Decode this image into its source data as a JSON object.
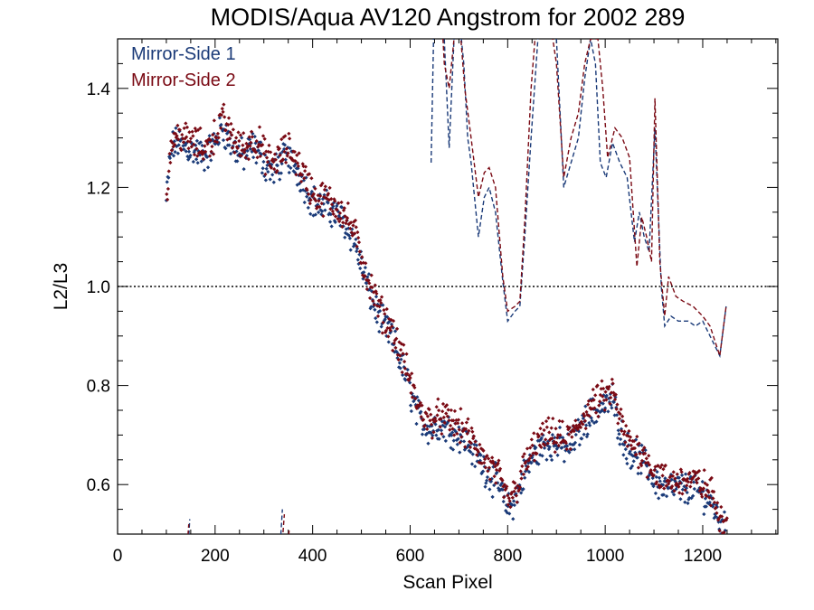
{
  "chart_data": {
    "type": "scatter",
    "title": "MODIS/Aqua AV120 Angstrom for 2002 289",
    "xlabel": "Scan Pixel",
    "ylabel": "L2/L3",
    "xlim": [
      0,
      1354
    ],
    "ylim": [
      0.5,
      1.5
    ],
    "x_ticks": [
      0,
      200,
      400,
      600,
      800,
      1000,
      1200
    ],
    "y_ticks": [
      0.6,
      0.8,
      1.0,
      1.2,
      1.4
    ],
    "x_tick_labels": [
      "0",
      "200",
      "400",
      "600",
      "800",
      "1000",
      "1200"
    ],
    "y_tick_labels": [
      "0.6",
      "0.8",
      "1.0",
      "1.2",
      "1.4"
    ],
    "reference_line": 1.0,
    "legend_position": "top-left",
    "colors": {
      "ms1": "#1a3a78",
      "ms2": "#7a0a14"
    },
    "legend": [
      {
        "label": "Mirror-Side 1",
        "color": "#1a3a78"
      },
      {
        "label": "Mirror-Side 2",
        "color": "#7a0a14"
      }
    ],
    "profile": [
      [
        100,
        1.18
      ],
      [
        106,
        1.25
      ],
      [
        112,
        1.29
      ],
      [
        125,
        1.3
      ],
      [
        140,
        1.29
      ],
      [
        160,
        1.28
      ],
      [
        180,
        1.27
      ],
      [
        200,
        1.3
      ],
      [
        215,
        1.33
      ],
      [
        230,
        1.3
      ],
      [
        245,
        1.28
      ],
      [
        260,
        1.27
      ],
      [
        275,
        1.29
      ],
      [
        290,
        1.28
      ],
      [
        305,
        1.25
      ],
      [
        320,
        1.24
      ],
      [
        335,
        1.26
      ],
      [
        350,
        1.27
      ],
      [
        365,
        1.25
      ],
      [
        380,
        1.22
      ],
      [
        395,
        1.19
      ],
      [
        410,
        1.17
      ],
      [
        425,
        1.17
      ],
      [
        440,
        1.16
      ],
      [
        455,
        1.15
      ],
      [
        470,
        1.13
      ],
      [
        485,
        1.1
      ],
      [
        500,
        1.05
      ],
      [
        515,
        1.0
      ],
      [
        530,
        0.96
      ],
      [
        545,
        0.93
      ],
      [
        560,
        0.91
      ],
      [
        575,
        0.87
      ],
      [
        590,
        0.83
      ],
      [
        605,
        0.78
      ],
      [
        620,
        0.74
      ],
      [
        640,
        0.72
      ],
      [
        660,
        0.73
      ],
      [
        680,
        0.72
      ],
      [
        700,
        0.71
      ],
      [
        720,
        0.69
      ],
      [
        740,
        0.66
      ],
      [
        760,
        0.63
      ],
      [
        780,
        0.61
      ],
      [
        795,
        0.57
      ],
      [
        805,
        0.56
      ],
      [
        820,
        0.59
      ],
      [
        835,
        0.63
      ],
      [
        850,
        0.66
      ],
      [
        865,
        0.68
      ],
      [
        880,
        0.69
      ],
      [
        900,
        0.69
      ],
      [
        920,
        0.68
      ],
      [
        940,
        0.7
      ],
      [
        955,
        0.73
      ],
      [
        970,
        0.75
      ],
      [
        985,
        0.76
      ],
      [
        1000,
        0.77
      ],
      [
        1015,
        0.78
      ],
      [
        1030,
        0.72
      ],
      [
        1045,
        0.68
      ],
      [
        1060,
        0.67
      ],
      [
        1080,
        0.65
      ],
      [
        1100,
        0.62
      ],
      [
        1120,
        0.6
      ],
      [
        1140,
        0.6
      ],
      [
        1160,
        0.6
      ],
      [
        1180,
        0.6
      ],
      [
        1200,
        0.59
      ],
      [
        1220,
        0.57
      ],
      [
        1235,
        0.53
      ],
      [
        1250,
        0.51
      ]
    ],
    "series": [
      {
        "name": "Mirror-Side 1",
        "color": "#1a3a78",
        "offset": -0.008,
        "dashed_line": [
          [
            643,
            1.25
          ],
          [
            648,
            1.5
          ],
          [
            652,
            1.6
          ],
          [
            663,
            1.55
          ],
          [
            670,
            1.5
          ],
          [
            680,
            1.28
          ],
          [
            690,
            1.5
          ],
          [
            700,
            1.55
          ],
          [
            710,
            1.45
          ],
          [
            718,
            1.3
          ],
          [
            725,
            1.25
          ],
          [
            740,
            1.1
          ],
          [
            752,
            1.18
          ],
          [
            762,
            1.2
          ],
          [
            775,
            1.15
          ],
          [
            790,
            1.01
          ],
          [
            800,
            0.93
          ],
          [
            815,
            0.95
          ],
          [
            825,
            0.96
          ],
          [
            835,
            1.1
          ],
          [
            848,
            1.3
          ],
          [
            862,
            1.5
          ],
          [
            885,
            1.6
          ],
          [
            900,
            1.5
          ],
          [
            915,
            1.2
          ],
          [
            930,
            1.25
          ],
          [
            945,
            1.3
          ],
          [
            958,
            1.42
          ],
          [
            970,
            1.5
          ],
          [
            980,
            1.45
          ],
          [
            990,
            1.25
          ],
          [
            1002,
            1.22
          ],
          [
            1015,
            1.29
          ],
          [
            1030,
            1.25
          ],
          [
            1045,
            1.22
          ],
          [
            1060,
            1.09
          ],
          [
            1070,
            1.15
          ],
          [
            1080,
            1.1
          ],
          [
            1090,
            1.07
          ],
          [
            1102,
            1.32
          ],
          [
            1115,
            1.0
          ],
          [
            1122,
            0.92
          ],
          [
            1135,
            0.94
          ],
          [
            1150,
            0.93
          ],
          [
            1170,
            0.93
          ],
          [
            1185,
            0.92
          ],
          [
            1200,
            0.93
          ],
          [
            1215,
            0.9
          ],
          [
            1235,
            0.86
          ],
          [
            1248,
            0.96
          ]
        ],
        "low_fragments": [
          [
            [
              143,
              0.44
            ],
            [
              148,
              0.53
            ]
          ],
          [
            [
              333,
              0.47
            ],
            [
              338,
              0.55
            ]
          ]
        ]
      },
      {
        "name": "Mirror-Side 2",
        "color": "#7a0a14",
        "offset": 0.008,
        "dashed_line": [
          [
            643,
            1.55
          ],
          [
            652,
            1.6
          ],
          [
            662,
            1.6
          ],
          [
            670,
            1.45
          ],
          [
            680,
            1.4
          ],
          [
            690,
            1.5
          ],
          [
            700,
            1.55
          ],
          [
            712,
            1.4
          ],
          [
            725,
            1.3
          ],
          [
            740,
            1.18
          ],
          [
            752,
            1.23
          ],
          [
            762,
            1.24
          ],
          [
            775,
            1.2
          ],
          [
            790,
            1.02
          ],
          [
            800,
            0.95
          ],
          [
            815,
            0.96
          ],
          [
            825,
            0.97
          ],
          [
            835,
            1.13
          ],
          [
            848,
            1.4
          ],
          [
            860,
            1.55
          ],
          [
            885,
            1.55
          ],
          [
            900,
            1.45
          ],
          [
            915,
            1.22
          ],
          [
            930,
            1.3
          ],
          [
            945,
            1.35
          ],
          [
            958,
            1.45
          ],
          [
            970,
            1.5
          ],
          [
            985,
            1.5
          ],
          [
            995,
            1.4
          ],
          [
            1005,
            1.26
          ],
          [
            1020,
            1.32
          ],
          [
            1035,
            1.3
          ],
          [
            1050,
            1.26
          ],
          [
            1065,
            1.04
          ],
          [
            1075,
            1.14
          ],
          [
            1085,
            1.1
          ],
          [
            1095,
            1.05
          ],
          [
            1102,
            1.38
          ],
          [
            1112,
            1.05
          ],
          [
            1122,
            0.94
          ],
          [
            1130,
            1.02
          ],
          [
            1145,
            0.98
          ],
          [
            1160,
            0.97
          ],
          [
            1180,
            0.96
          ],
          [
            1200,
            0.94
          ],
          [
            1215,
            0.92
          ],
          [
            1235,
            0.86
          ],
          [
            1248,
            0.96
          ]
        ],
        "low_fragments": [
          [
            [
              140,
              0.44
            ],
            [
              146,
              0.52
            ]
          ],
          [
            [
              336,
              0.46
            ],
            [
              342,
              0.54
            ]
          ],
          [
            [
              346,
              0.44
            ],
            [
              352,
              0.51
            ]
          ]
        ]
      }
    ]
  }
}
